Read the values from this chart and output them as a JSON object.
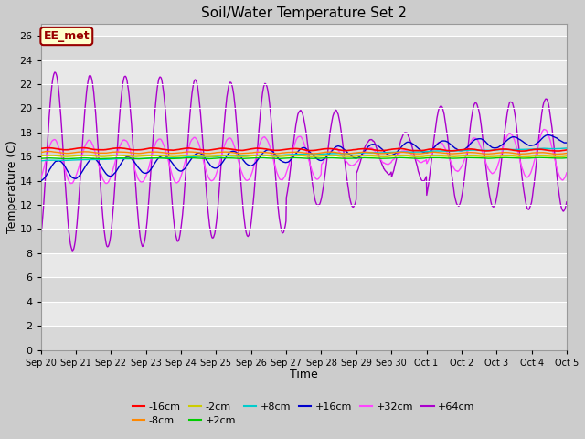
{
  "title": "Soil/Water Temperature Set 2",
  "xlabel": "Time",
  "ylabel": "Temperature (C)",
  "ylim": [
    0,
    27
  ],
  "yticks": [
    0,
    2,
    4,
    6,
    8,
    10,
    12,
    14,
    16,
    18,
    20,
    22,
    24,
    26
  ],
  "annotation_text": "EE_met",
  "annotation_bg": "#ffffcc",
  "annotation_border": "#990000",
  "fig_bg": "#cccccc",
  "plot_bg": "#e8e8e8",
  "grid_color": "#ffffff",
  "series_colors": {
    "neg16": "#ff0000",
    "neg8": "#ff8800",
    "neg2": "#cccc00",
    "pos2": "#00cc00",
    "pos8": "#00cccc",
    "pos16": "#0000cc",
    "pos32": "#ff44ff",
    "pos64": "#aa00cc"
  },
  "xtick_labels": [
    "Sep 20",
    "Sep 21",
    "Sep 22",
    "Sep 23",
    "Sep 24",
    "Sep 25",
    "Sep 26",
    "Sep 27",
    "Sep 28",
    "Sep 29",
    "Sep 30",
    "Oct 1",
    "Oct 2",
    "Oct 3",
    "Oct 4",
    "Oct 5"
  ],
  "legend_labels": [
    "-16cm",
    "-8cm",
    "-2cm",
    "+2cm",
    "+8cm",
    "+16cm",
    "+32cm",
    "+64cm"
  ],
  "legend_colors": [
    "#ff0000",
    "#ff8800",
    "#cccc00",
    "#00cc00",
    "#00cccc",
    "#0000cc",
    "#ff44ff",
    "#aa00cc"
  ]
}
